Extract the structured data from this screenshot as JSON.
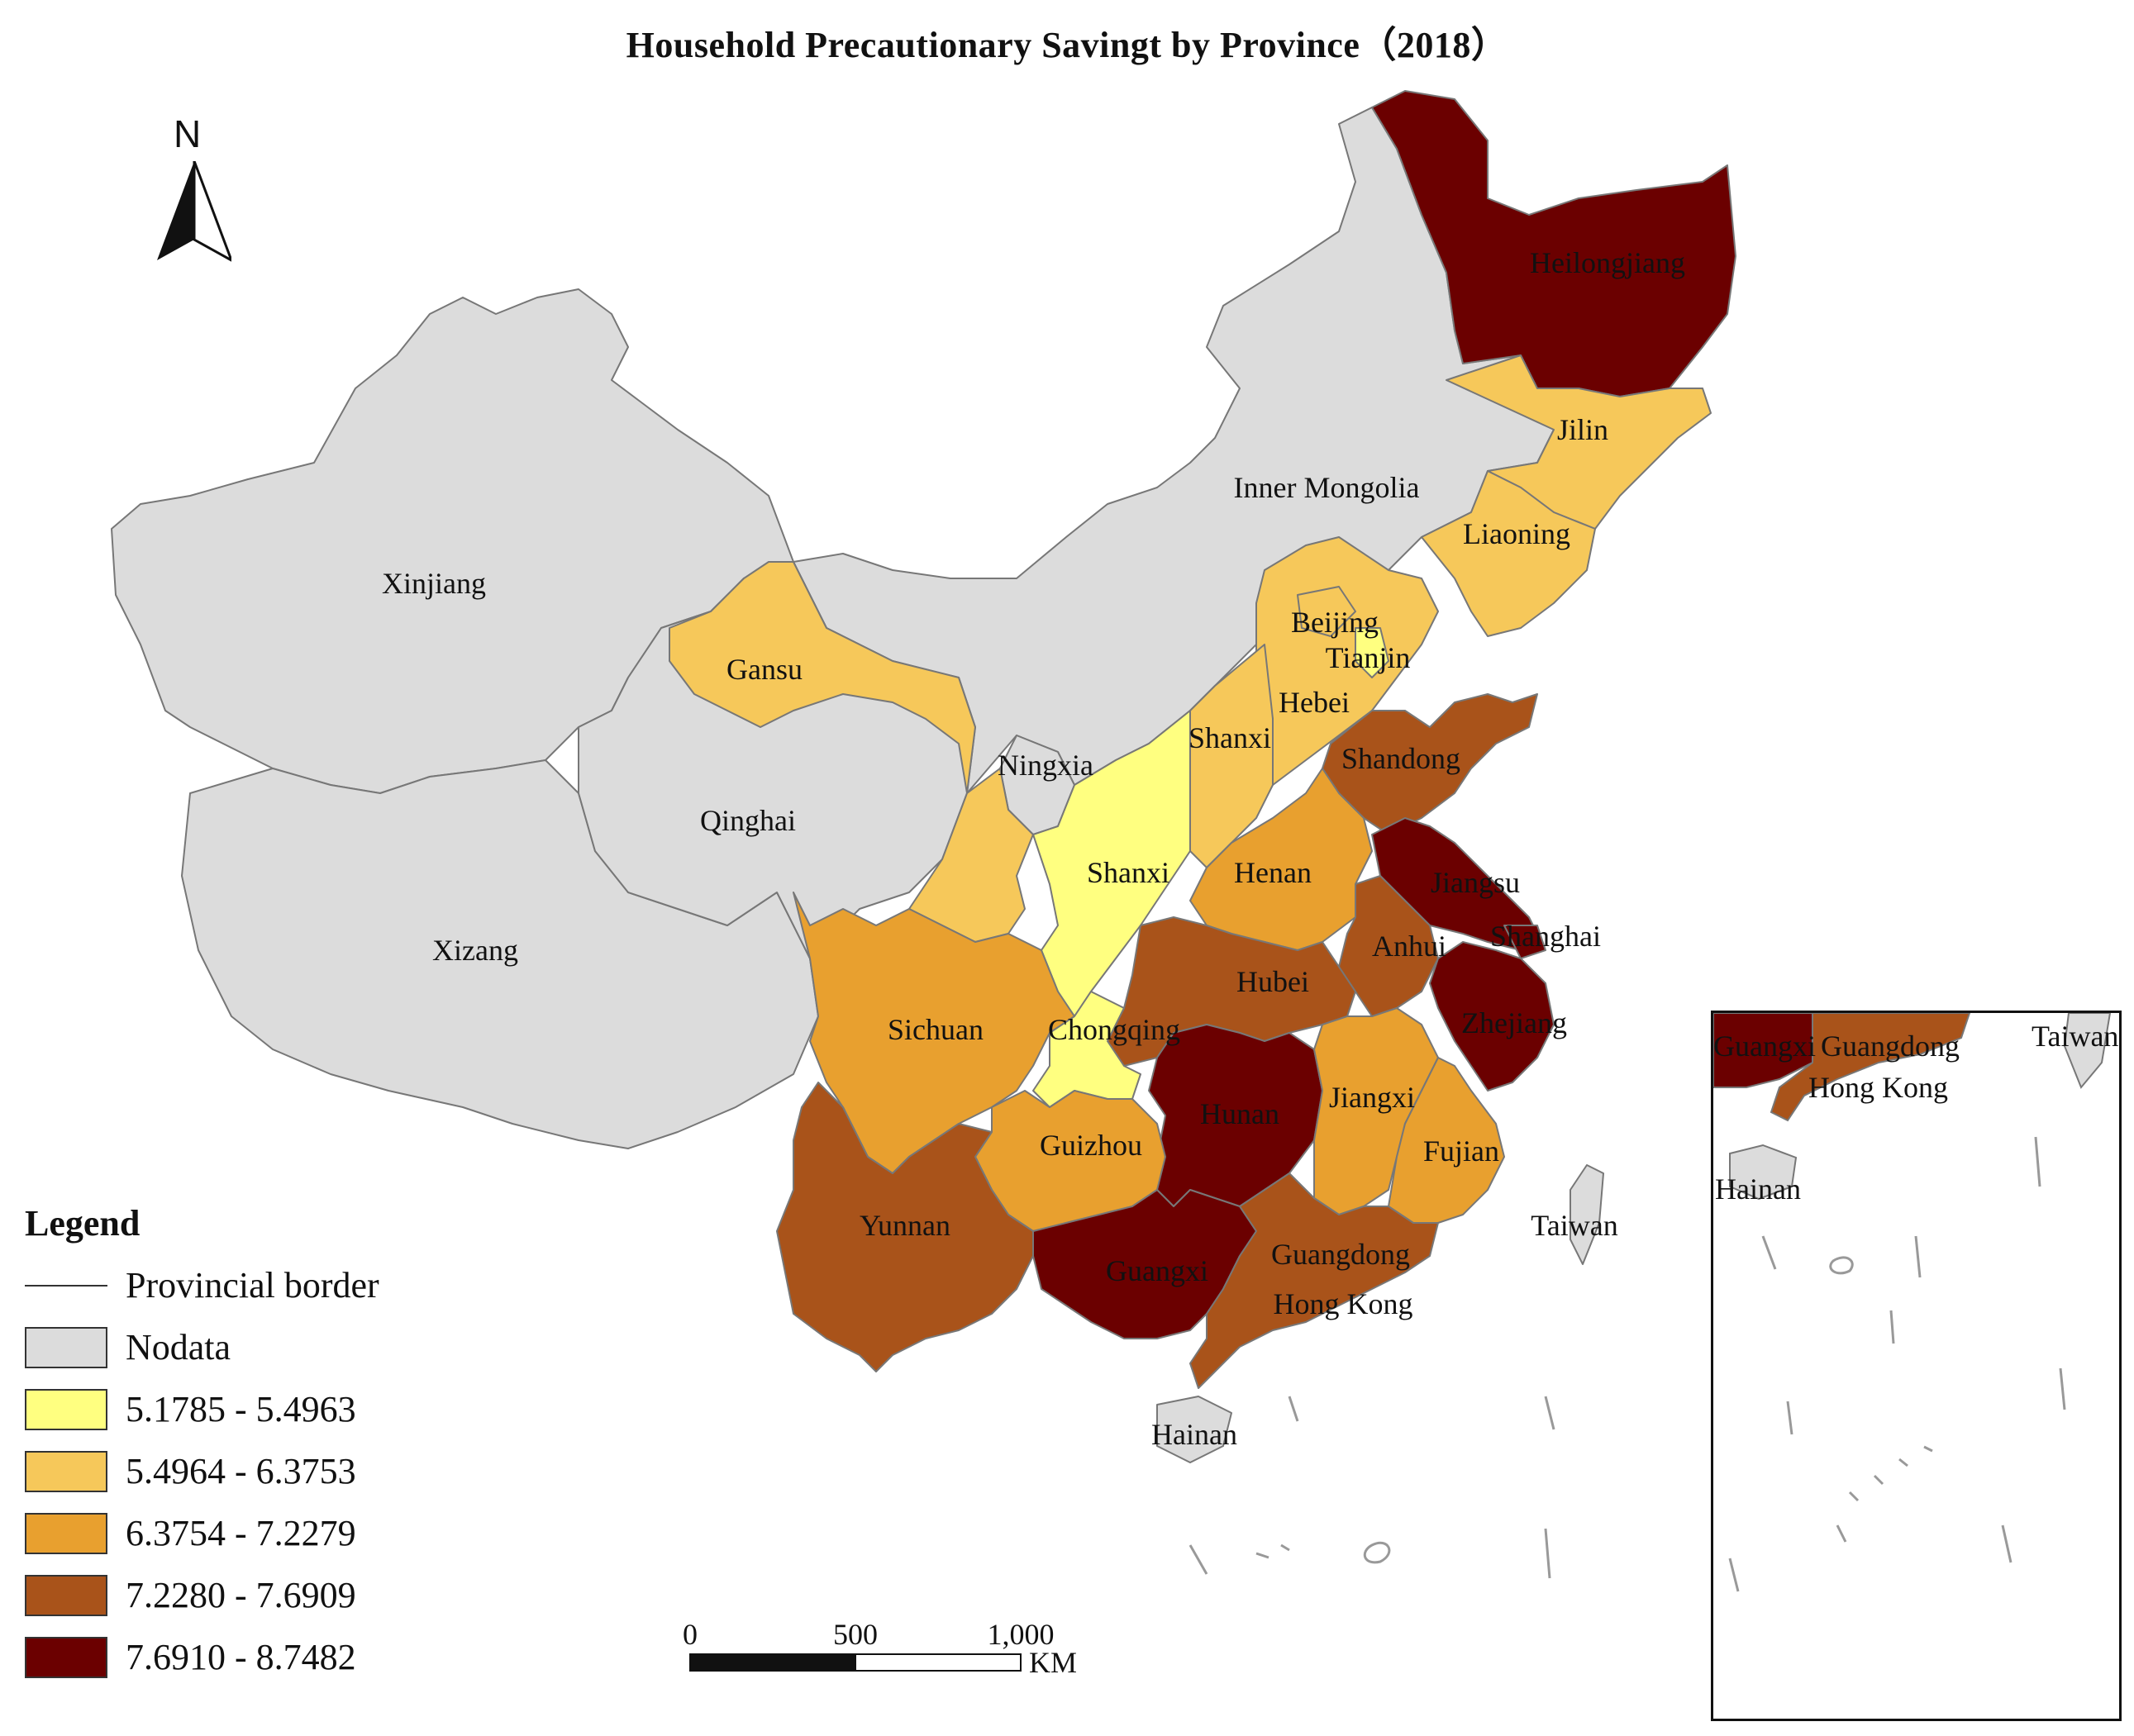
{
  "title": "Household Precautionary Savingt by Province（2018）",
  "north_label": "N",
  "colors": {
    "nodata": "#dcdcdc",
    "c1": "#ffff80",
    "c2": "#f6c85a",
    "c3": "#e8a02f",
    "c4": "#a9531a",
    "c5": "#6b0000",
    "border": "#777777"
  },
  "legend": {
    "title": "Legend",
    "border_label": "Provincial border",
    "items": [
      {
        "label": "Nodata",
        "color": "#dcdcdc"
      },
      {
        "label": "5.1785 - 5.4963",
        "color": "#ffff80"
      },
      {
        "label": "5.4964 - 6.3753",
        "color": "#f6c85a"
      },
      {
        "label": "6.3754 - 7.2279",
        "color": "#e8a02f"
      },
      {
        "label": "7.2280 - 7.6909",
        "color": "#a9531a"
      },
      {
        "label": "7.6910 - 8.7482",
        "color": "#6b0000"
      }
    ]
  },
  "scale": {
    "ticks": [
      "0",
      "500",
      "1,000"
    ],
    "unit": "KM"
  },
  "provinces": [
    {
      "name": "Heilongjiang",
      "class": "7.6910 - 8.7482"
    },
    {
      "name": "Jilin",
      "class": "5.4964 - 6.3753"
    },
    {
      "name": "Liaoning",
      "class": "5.4964 - 6.3753"
    },
    {
      "name": "Inner Mongolia",
      "class": "Nodata"
    },
    {
      "name": "Xinjiang",
      "class": "Nodata"
    },
    {
      "name": "Gansu",
      "class": "5.4964 - 6.3753"
    },
    {
      "name": "Beijing",
      "class": "5.4964 - 6.3753"
    },
    {
      "name": "Tianjin",
      "class": "5.1785 - 5.4963"
    },
    {
      "name": "Hebei",
      "class": "5.4964 - 6.3753"
    },
    {
      "name": "Shanxi",
      "class": "5.4964 - 6.3753"
    },
    {
      "name": "Ningxia",
      "class": "Nodata"
    },
    {
      "name": "Shandong",
      "class": "7.2280 - 7.6909"
    },
    {
      "name": "Qinghai",
      "class": "Nodata"
    },
    {
      "name": "Shaanxi",
      "text": "Shanxi",
      "class": "5.1785 - 5.4963"
    },
    {
      "name": "Henan",
      "class": "6.3754 - 7.2279"
    },
    {
      "name": "Jiangsu",
      "class": "7.6910 - 8.7482"
    },
    {
      "name": "Shanghai",
      "class": "7.6910 - 8.7482"
    },
    {
      "name": "Xizang",
      "class": "Nodata"
    },
    {
      "name": "Anhui",
      "class": "7.2280 - 7.6909"
    },
    {
      "name": "Hubei",
      "class": "7.2280 - 7.6909"
    },
    {
      "name": "Zhejiang",
      "class": "7.6910 - 8.7482"
    },
    {
      "name": "Sichuan",
      "class": "6.3754 - 7.2279"
    },
    {
      "name": "Chongqing",
      "class": "5.1785 - 5.4963"
    },
    {
      "name": "Hunan",
      "class": "7.6910 - 8.7482"
    },
    {
      "name": "Jiangxi",
      "class": "6.3754 - 7.2279"
    },
    {
      "name": "Guizhou",
      "class": "6.3754 - 7.2279"
    },
    {
      "name": "Fujian",
      "class": "6.3754 - 7.2279"
    },
    {
      "name": "Yunnan",
      "class": "7.2280 - 7.6909"
    },
    {
      "name": "Taiwan",
      "class": "Nodata"
    },
    {
      "name": "Guangxi",
      "class": "7.6910 - 8.7482"
    },
    {
      "name": "Guangdong",
      "class": "7.2280 - 7.6909"
    },
    {
      "name": "Hong Kong",
      "class": "7.2280 - 7.6909"
    },
    {
      "name": "Hainan",
      "class": "Nodata"
    }
  ],
  "inset": {
    "labels": [
      "Guangxi",
      "Guangdong",
      "Hong Kong",
      "Taiwan",
      "Hainan"
    ]
  }
}
